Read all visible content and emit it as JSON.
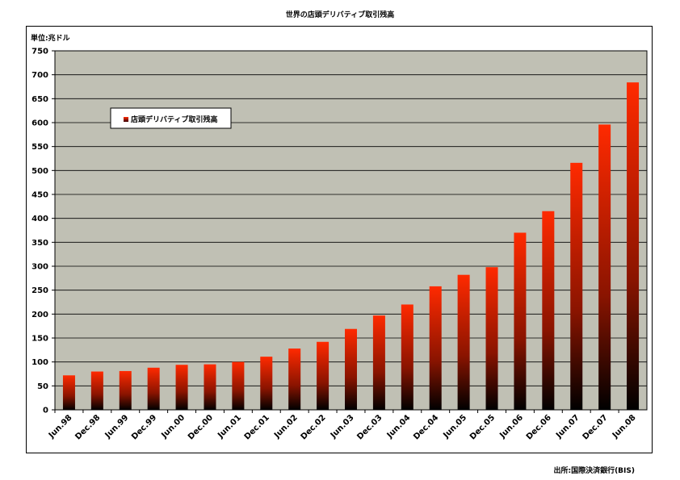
{
  "chart_data": {
    "type": "bar",
    "title": "世界の店頭デリバティブ取引残高",
    "unit_label": "単位:兆ドル",
    "source": "出所:国際決済銀行(BIS)",
    "categories": [
      "Jun.98",
      "Dec.98",
      "Jun.99",
      "Dec.99",
      "Jun.00",
      "Dec.00",
      "Jun.01",
      "Dec.01",
      "Jun.02",
      "Dec.02",
      "Jun.03",
      "Dec.03",
      "Jun.04",
      "Dec.04",
      "Jun.05",
      "Dec.05",
      "Jun.06",
      "Dec.06",
      "Jun.07",
      "Dec.07",
      "Jun.08"
    ],
    "series": [
      {
        "name": "店頭デリバティブ取引残高",
        "values": [
          72,
          80,
          81,
          88,
          94,
          95,
          100,
          111,
          128,
          142,
          169,
          197,
          220,
          258,
          282,
          298,
          370,
          415,
          516,
          596,
          684
        ]
      }
    ],
    "ylim": [
      0,
      750
    ],
    "yticks": [
      0,
      50,
      100,
      150,
      200,
      250,
      300,
      350,
      400,
      450,
      500,
      550,
      600,
      650,
      700,
      750
    ],
    "grid": true,
    "legend_position": "upper-left inside plot",
    "colors": {
      "plot_bg": "#c0c0b4",
      "bar_top": "#ff2a00",
      "bar_bottom": "#000000",
      "grid": "#000000"
    }
  }
}
